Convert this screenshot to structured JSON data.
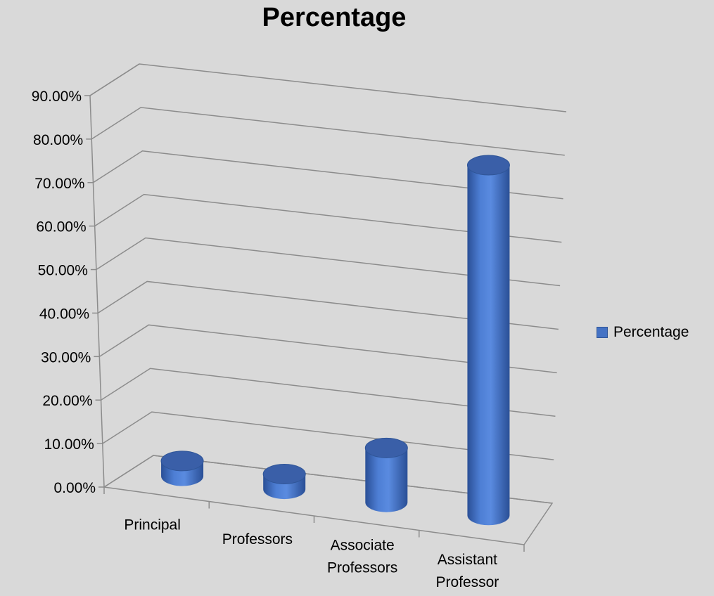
{
  "chart_data": {
    "type": "bar",
    "title": "Percentage",
    "categories": [
      "Principal",
      "Professors",
      "Associate Professors",
      "Assistant Professor"
    ],
    "category_lines": [
      [
        "Principal"
      ],
      [
        "Professors"
      ],
      [
        "Associate",
        "Professors"
      ],
      [
        "Assistant",
        "Professor"
      ]
    ],
    "series": [
      {
        "name": "Percentage",
        "values": [
          3.5,
          3.5,
          12.5,
          80.5
        ]
      }
    ],
    "ylim": [
      0,
      90
    ],
    "yticks": [
      0,
      10,
      20,
      30,
      40,
      50,
      60,
      70,
      80,
      90
    ],
    "ytick_labels": [
      "0.00%",
      "10.00%",
      "20.00%",
      "30.00%",
      "40.00%",
      "50.00%",
      "60.00%",
      "70.00%",
      "80.00%",
      "90.00%"
    ],
    "xlabel": "",
    "ylabel": "",
    "grid": true,
    "style": "3d-cylinder",
    "legend_position": "right",
    "colors": {
      "bar": "#4472c4",
      "bar_dark": "#2f5597",
      "bar_top": "#3a5fa8",
      "background": "#d9d9d9",
      "grid": "#8c8c8c"
    }
  }
}
